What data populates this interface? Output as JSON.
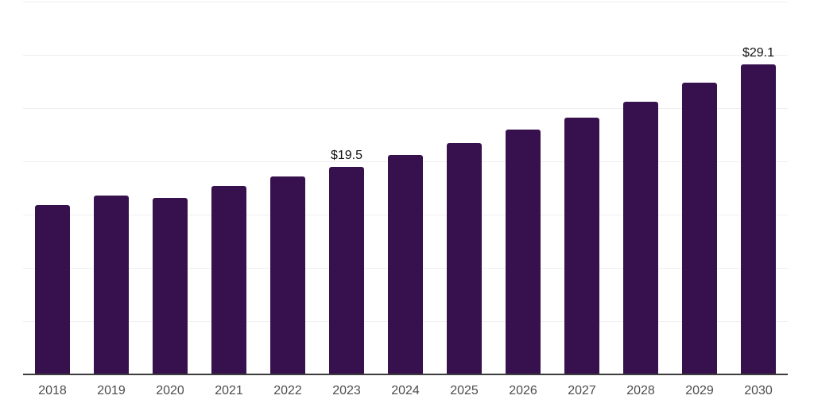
{
  "chart_data": {
    "type": "bar",
    "title": "",
    "xlabel": "",
    "ylabel": "",
    "categories": [
      "2018",
      "2019",
      "2020",
      "2021",
      "2022",
      "2023",
      "2024",
      "2025",
      "2026",
      "2027",
      "2028",
      "2029",
      "2030"
    ],
    "values": [
      15.9,
      16.8,
      16.6,
      17.7,
      18.6,
      19.5,
      20.6,
      21.7,
      23.0,
      24.1,
      25.6,
      27.4,
      29.1
    ],
    "data_labels": [
      {
        "category": "2023",
        "text": "$19.5"
      },
      {
        "category": "2030",
        "text": "$29.1"
      }
    ],
    "ylim": [
      0,
      35
    ],
    "gridline_step": 5,
    "grid": true,
    "legend_position": "none",
    "colors": {
      "bar": "#36114D",
      "axis": "#3C3C3C",
      "gridline": "#EFEFEF",
      "data_label": "#111111",
      "tick_label": "#4D4D4D",
      "background": "#FFFFFF"
    }
  }
}
